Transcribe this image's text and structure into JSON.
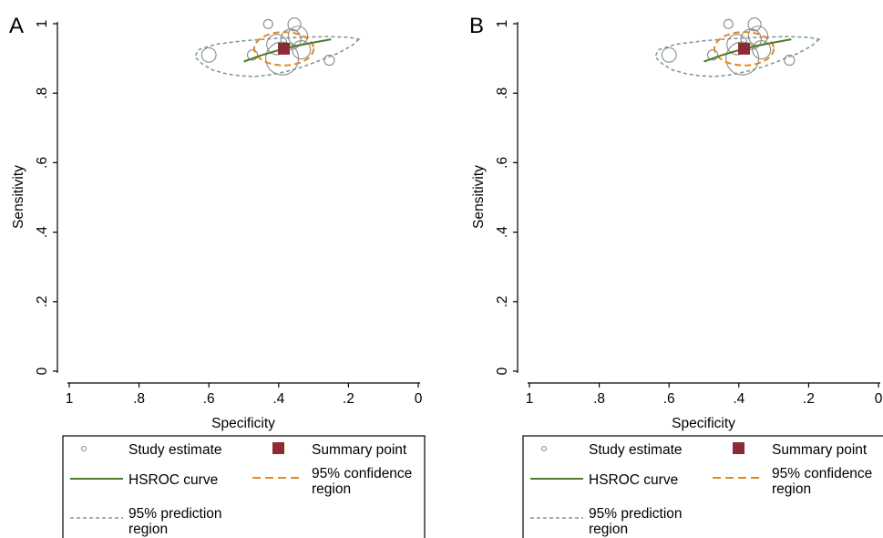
{
  "chart_data": [
    {
      "type": "scatter",
      "panel_label": "A",
      "title": "",
      "xlabel": "Specificity",
      "ylabel": "Sensitivity",
      "xlim": [
        1,
        0
      ],
      "ylim": [
        0,
        1
      ],
      "x_reversed": true,
      "x_ticks": [
        "1",
        ".8",
        ".6",
        ".4",
        ".2",
        "0"
      ],
      "y_ticks": [
        "0",
        ".2",
        ".4",
        ".6",
        ".8",
        "1"
      ],
      "x_tick_values": [
        1,
        0.8,
        0.6,
        0.4,
        0.2,
        0
      ],
      "y_tick_values": [
        0,
        0.2,
        0.4,
        0.6,
        0.8,
        1
      ],
      "grid": false,
      "legend_position": "bottom",
      "study_estimates": [
        {
          "specificity": 0.43,
          "sensitivity": 0.999,
          "weight": 0.2
        },
        {
          "specificity": 0.355,
          "sensitivity": 0.998,
          "weight": 0.4
        },
        {
          "specificity": 0.345,
          "sensitivity": 0.965,
          "weight": 0.9
        },
        {
          "specificity": 0.365,
          "sensitivity": 0.955,
          "weight": 1.0
        },
        {
          "specificity": 0.405,
          "sensitivity": 0.94,
          "weight": 1.0
        },
        {
          "specificity": 0.335,
          "sensitivity": 0.925,
          "weight": 0.8
        },
        {
          "specificity": 0.39,
          "sensitivity": 0.9,
          "weight": 2.6
        },
        {
          "specificity": 0.6,
          "sensitivity": 0.91,
          "weight": 0.5
        },
        {
          "specificity": 0.475,
          "sensitivity": 0.91,
          "weight": 0.25
        },
        {
          "specificity": 0.255,
          "sensitivity": 0.895,
          "weight": 0.25
        }
      ],
      "summary_point": {
        "specificity": 0.385,
        "sensitivity": 0.928
      },
      "hsroc_curve": {
        "specificity": [
          0.5,
          0.45,
          0.4,
          0.35,
          0.3,
          0.25
        ],
        "sensitivity": [
          0.891,
          0.909,
          0.924,
          0.936,
          0.946,
          0.955
        ]
      },
      "confidence_region": {
        "specificity_center": 0.385,
        "sensitivity_center": 0.928,
        "specificity_halfwidth": 0.085,
        "sensitivity_halfwidth": 0.048
      },
      "prediction_region": {
        "specificity": [
          0.17,
          0.19,
          0.23,
          0.28,
          0.33,
          0.38,
          0.43,
          0.47,
          0.51,
          0.55,
          0.59,
          0.62,
          0.64,
          0.63,
          0.58,
          0.5,
          0.42,
          0.34,
          0.26,
          0.2,
          0.17
        ],
        "sensitivity": [
          0.955,
          0.937,
          0.915,
          0.895,
          0.876,
          0.862,
          0.852,
          0.848,
          0.85,
          0.856,
          0.867,
          0.885,
          0.905,
          0.925,
          0.941,
          0.951,
          0.957,
          0.961,
          0.963,
          0.961,
          0.955
        ]
      },
      "legend": [
        {
          "key": "study",
          "label": "Study estimate"
        },
        {
          "key": "summary",
          "label": "Summary point"
        },
        {
          "key": "hsroc",
          "label": "HSROC curve"
        },
        {
          "key": "confidence",
          "label": "95% confidence region"
        },
        {
          "key": "prediction",
          "label": "95% prediction region"
        }
      ]
    },
    {
      "type": "scatter",
      "panel_label": "B",
      "title": "",
      "xlabel": "Specificity",
      "ylabel": "Sensitivity",
      "xlim": [
        1,
        0
      ],
      "ylim": [
        0,
        1
      ],
      "x_reversed": true,
      "x_ticks": [
        "1",
        ".8",
        ".6",
        ".4",
        ".2",
        "0"
      ],
      "y_ticks": [
        "0",
        ".2",
        ".4",
        ".6",
        ".8",
        "1"
      ],
      "x_tick_values": [
        1,
        0.8,
        0.6,
        0.4,
        0.2,
        0
      ],
      "y_tick_values": [
        0,
        0.2,
        0.4,
        0.6,
        0.8,
        1
      ],
      "grid": false,
      "legend_position": "bottom",
      "study_estimates": [
        {
          "specificity": 0.43,
          "sensitivity": 0.999,
          "weight": 0.2
        },
        {
          "specificity": 0.355,
          "sensitivity": 0.998,
          "weight": 0.4
        },
        {
          "specificity": 0.345,
          "sensitivity": 0.965,
          "weight": 0.9
        },
        {
          "specificity": 0.365,
          "sensitivity": 0.955,
          "weight": 1.0
        },
        {
          "specificity": 0.405,
          "sensitivity": 0.94,
          "weight": 1.0
        },
        {
          "specificity": 0.335,
          "sensitivity": 0.925,
          "weight": 0.8
        },
        {
          "specificity": 0.39,
          "sensitivity": 0.9,
          "weight": 2.6
        },
        {
          "specificity": 0.6,
          "sensitivity": 0.91,
          "weight": 0.5
        },
        {
          "specificity": 0.475,
          "sensitivity": 0.91,
          "weight": 0.25
        },
        {
          "specificity": 0.255,
          "sensitivity": 0.895,
          "weight": 0.25
        }
      ],
      "summary_point": {
        "specificity": 0.385,
        "sensitivity": 0.928
      },
      "hsroc_curve": {
        "specificity": [
          0.5,
          0.45,
          0.4,
          0.35,
          0.3,
          0.25
        ],
        "sensitivity": [
          0.891,
          0.909,
          0.924,
          0.936,
          0.946,
          0.955
        ]
      },
      "confidence_region": {
        "specificity_center": 0.385,
        "sensitivity_center": 0.928,
        "specificity_halfwidth": 0.085,
        "sensitivity_halfwidth": 0.048
      },
      "prediction_region": {
        "specificity": [
          0.17,
          0.19,
          0.23,
          0.28,
          0.33,
          0.38,
          0.43,
          0.47,
          0.51,
          0.55,
          0.59,
          0.62,
          0.64,
          0.63,
          0.58,
          0.5,
          0.42,
          0.34,
          0.26,
          0.2,
          0.17
        ],
        "sensitivity": [
          0.955,
          0.937,
          0.915,
          0.895,
          0.876,
          0.862,
          0.852,
          0.848,
          0.85,
          0.856,
          0.867,
          0.885,
          0.905,
          0.925,
          0.941,
          0.951,
          0.957,
          0.961,
          0.963,
          0.961,
          0.955
        ]
      },
      "legend": [
        {
          "key": "study",
          "label": "Study estimate"
        },
        {
          "key": "summary",
          "label": "Summary point"
        },
        {
          "key": "hsroc",
          "label": "HSROC curve"
        },
        {
          "key": "confidence",
          "label": "95% confidence region"
        },
        {
          "key": "prediction",
          "label": "95% prediction region"
        }
      ]
    }
  ],
  "colors": {
    "study": "#8a8a8a",
    "summary": "#8e2b32",
    "hsroc": "#4e7a2c",
    "confidence": "#e08a22",
    "prediction": "#7f9a99",
    "axis": "#000000"
  }
}
